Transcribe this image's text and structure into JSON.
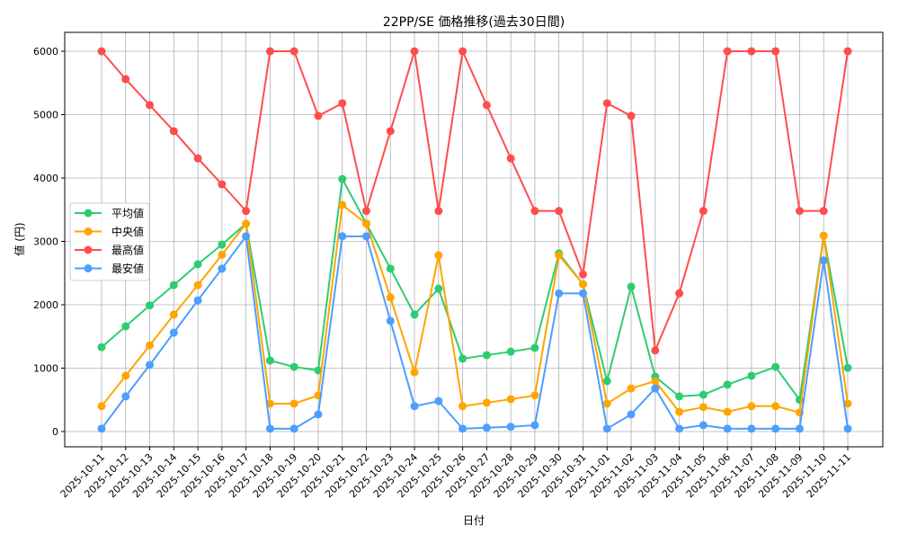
{
  "chart_data": {
    "type": "line",
    "title": "22PP/SE 価格推移(過去30日間)",
    "xlabel": "日付",
    "ylabel": "値 (円)",
    "ylim": [
      -241,
      6298
    ],
    "yticks": [
      0,
      1000,
      2000,
      3000,
      4000,
      5000,
      6000
    ],
    "grid": true,
    "legend_placement": "center-left",
    "x": [
      "2025-10-11",
      "2025-10-12",
      "2025-10-13",
      "2025-10-14",
      "2025-10-15",
      "2025-10-16",
      "2025-10-17",
      "2025-10-18",
      "2025-10-19",
      "2025-10-20",
      "2025-10-21",
      "2025-10-22",
      "2025-10-23",
      "2025-10-24",
      "2025-10-25",
      "2025-10-26",
      "2025-10-27",
      "2025-10-28",
      "2025-10-29",
      "2025-10-30",
      "2025-10-31",
      "2025-11-01",
      "2025-11-02",
      "2025-11-03",
      "2025-11-04",
      "2025-11-05",
      "2025-11-06",
      "2025-11-07",
      "2025-11-08",
      "2025-11-09",
      "2025-11-10",
      "2025-11-11"
    ],
    "series": [
      {
        "name": "平均値",
        "color": "#2ecc71",
        "values": [
          1330,
          1660,
          1990,
          2310,
          2640,
          2950,
          3280,
          1120,
          1020,
          965,
          3985,
          3280,
          2570,
          1845,
          2255,
          1150,
          1205,
          1260,
          1320,
          2810,
          2325,
          795,
          2285,
          865,
          555,
          580,
          740,
          880,
          1020,
          500,
          3090,
          1005
        ]
      },
      {
        "name": "中央値",
        "color": "#ffa500",
        "values": [
          400,
          880,
          1360,
          1845,
          2310,
          2790,
          3280,
          440,
          440,
          570,
          3575,
          3280,
          2115,
          935,
          2780,
          400,
          455,
          510,
          570,
          2780,
          2325,
          440,
          680,
          795,
          310,
          385,
          310,
          400,
          400,
          300,
          3090,
          440
        ]
      },
      {
        "name": "最高値",
        "color": "#ff4d4d",
        "values": [
          6000,
          5560,
          5150,
          4740,
          4310,
          3900,
          3480,
          6000,
          6000,
          4980,
          5180,
          3480,
          4740,
          6000,
          3480,
          6000,
          5150,
          4310,
          3480,
          3480,
          2480,
          5180,
          4980,
          1280,
          2180,
          3480,
          6000,
          6000,
          6000,
          3480,
          3480,
          6000
        ]
      },
      {
        "name": "最安値",
        "color": "#4d9eff",
        "values": [
          45,
          555,
          1050,
          1560,
          2070,
          2570,
          3080,
          45,
          45,
          270,
          3080,
          3080,
          1745,
          400,
          480,
          45,
          60,
          75,
          100,
          2180,
          2180,
          45,
          270,
          680,
          45,
          100,
          45,
          45,
          45,
          45,
          2700,
          45
        ]
      }
    ]
  }
}
